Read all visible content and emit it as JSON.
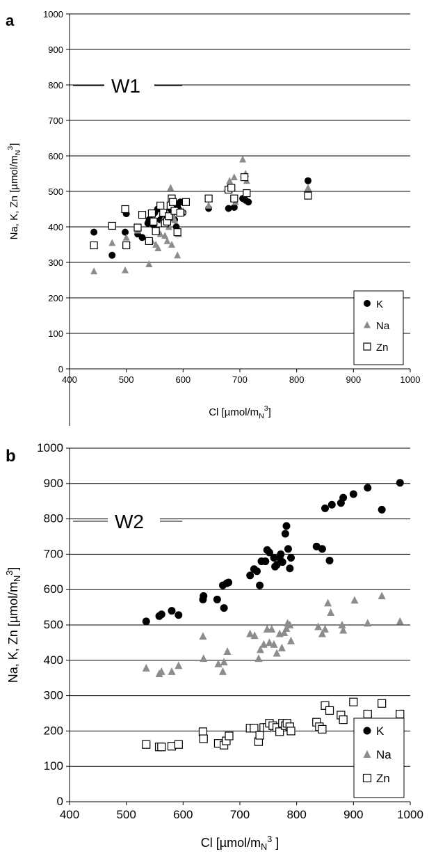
{
  "chart_data": [
    {
      "type": "scatter",
      "panel_label": "a",
      "annotation": "W1",
      "xlabel": "Cl [µmol/m",
      "xlabel_sub": "N",
      "xlabel_sup": "3",
      "xlabel_end": "]",
      "ylabel": "Na, K, Zn [µmol/m",
      "ylabel_sub": "N",
      "ylabel_sup": "3",
      "ylabel_end": "]",
      "xlim": [
        400,
        1000
      ],
      "ylim": [
        0,
        1000
      ],
      "xticks": [
        400,
        500,
        600,
        700,
        800,
        900,
        1000
      ],
      "yticks": [
        0,
        100,
        200,
        300,
        400,
        500,
        600,
        700,
        800,
        900,
        1000
      ],
      "grid": "horizontal",
      "legend_position": "bottom-right",
      "series": [
        {
          "name": "K",
          "marker": "filled-circle",
          "color": "#000000",
          "x": [
            443,
            475,
            498,
            500,
            520,
            528,
            538,
            540,
            545,
            548,
            550,
            555,
            560,
            565,
            568,
            570,
            572,
            575,
            578,
            580,
            582,
            585,
            588,
            590,
            592,
            595,
            600,
            645,
            680,
            690,
            705,
            710,
            715,
            820
          ],
          "y": [
            385,
            320,
            385,
            437,
            380,
            370,
            410,
            420,
            430,
            405,
            440,
            450,
            420,
            440,
            430,
            420,
            410,
            430,
            450,
            470,
            440,
            420,
            400,
            460,
            450,
            470,
            440,
            452,
            452,
            455,
            480,
            475,
            470,
            530
          ]
        },
        {
          "name": "Na",
          "marker": "filled-triangle",
          "color": "#8c8c8c",
          "x": [
            443,
            475,
            498,
            500,
            520,
            540,
            545,
            548,
            552,
            556,
            560,
            565,
            568,
            572,
            575,
            578,
            580,
            582,
            585,
            590,
            592,
            595,
            600,
            645,
            678,
            682,
            690,
            692,
            705,
            710,
            712,
            820
          ],
          "y": [
            275,
            355,
            278,
            370,
            390,
            295,
            360,
            420,
            350,
            340,
            380,
            420,
            375,
            360,
            400,
            510,
            350,
            430,
            420,
            320,
            380,
            440,
            445,
            460,
            510,
            530,
            540,
            470,
            590,
            550,
            530,
            510
          ]
        },
        {
          "name": "Zn",
          "marker": "open-square",
          "color": "#000000",
          "x": [
            443,
            475,
            498,
            500,
            520,
            528,
            540,
            545,
            548,
            552,
            560,
            565,
            568,
            572,
            575,
            578,
            580,
            582,
            585,
            590,
            595,
            605,
            645,
            680,
            685,
            690,
            708,
            712,
            820
          ],
          "y": [
            348,
            403,
            450,
            348,
            398,
            434,
            360,
            438,
            415,
            388,
            460,
            440,
            410,
            415,
            430,
            460,
            480,
            470,
            445,
            385,
            440,
            470,
            480,
            505,
            510,
            480,
            540,
            495,
            488
          ]
        }
      ]
    },
    {
      "type": "scatter",
      "panel_label": "b",
      "annotation": "W2",
      "xlabel": "Cl [µmol/m",
      "xlabel_sub": "N",
      "xlabel_sup": "3",
      "xlabel_end": " ]",
      "ylabel": "Na, K, Zn [µmol/m",
      "ylabel_sub": "N",
      "ylabel_sup": "3",
      "ylabel_end": "]",
      "xlim": [
        400,
        1000
      ],
      "ylim": [
        0,
        1000
      ],
      "xticks": [
        400,
        500,
        600,
        700,
        800,
        900,
        1000
      ],
      "yticks": [
        0,
        100,
        200,
        300,
        400,
        500,
        600,
        700,
        800,
        900,
        1000
      ],
      "grid": "horizontal",
      "legend_position": "bottom-right",
      "series": [
        {
          "name": "K",
          "marker": "filled-circle",
          "color": "#000000",
          "x": [
            535,
            558,
            562,
            580,
            592,
            635,
            636,
            660,
            670,
            672,
            677,
            680,
            718,
            725,
            730,
            735,
            738,
            745,
            748,
            752,
            760,
            762,
            765,
            770,
            772,
            775,
            780,
            782,
            785,
            788,
            790,
            835,
            845,
            850,
            858,
            862,
            878,
            882,
            900,
            925,
            950,
            982
          ],
          "y": [
            510,
            525,
            530,
            540,
            528,
            572,
            582,
            572,
            612,
            548,
            618,
            620,
            640,
            658,
            652,
            612,
            680,
            680,
            712,
            705,
            690,
            665,
            670,
            690,
            700,
            678,
            758,
            780,
            715,
            660,
            690,
            722,
            715,
            830,
            682,
            840,
            845,
            860,
            870,
            888,
            826,
            902
          ]
        },
        {
          "name": "Na",
          "marker": "filled-triangle",
          "color": "#8c8c8c",
          "x": [
            535,
            558,
            562,
            580,
            592,
            635,
            636,
            662,
            670,
            672,
            678,
            718,
            726,
            733,
            736,
            742,
            748,
            752,
            756,
            760,
            765,
            770,
            774,
            778,
            782,
            784,
            788,
            790,
            838,
            845,
            850,
            855,
            860,
            880,
            882,
            902,
            925,
            950,
            982
          ],
          "y": [
            378,
            362,
            368,
            368,
            385,
            468,
            405,
            390,
            368,
            395,
            425,
            475,
            470,
            405,
            430,
            445,
            488,
            450,
            488,
            445,
            420,
            475,
            435,
            478,
            490,
            505,
            500,
            455,
            495,
            475,
            488,
            562,
            535,
            500,
            485,
            570,
            505,
            582,
            510
          ]
        },
        {
          "name": "Zn",
          "marker": "open-square",
          "color": "#000000",
          "x": [
            535,
            558,
            562,
            580,
            592,
            635,
            636,
            662,
            672,
            676,
            681,
            718,
            725,
            733,
            735,
            742,
            748,
            752,
            758,
            765,
            770,
            775,
            780,
            783,
            788,
            790,
            835,
            840,
            845,
            850,
            858,
            878,
            882,
            900,
            925,
            950,
            982
          ],
          "y": [
            162,
            155,
            155,
            157,
            162,
            198,
            178,
            165,
            160,
            172,
            186,
            208,
            208,
            170,
            188,
            210,
            210,
            222,
            215,
            210,
            198,
            222,
            215,
            222,
            212,
            200,
            225,
            212,
            205,
            272,
            258,
            245,
            232,
            282,
            248,
            278,
            248
          ]
        }
      ]
    }
  ]
}
